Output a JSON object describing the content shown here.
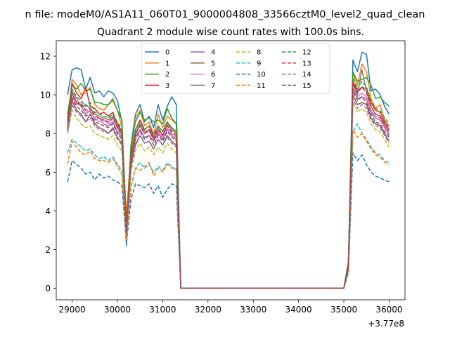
{
  "figure": {
    "suptitle": "n file: modeM0/AS1A11_060T01_9000004808_33566cztM0_level2_quad_clean",
    "title": "Quadrant 2 module wise count rates with 100.0s bins.",
    "offset_label": "+3.77e8"
  },
  "chart_data": {
    "type": "line",
    "title": "Quadrant 2 module wise count rates with 100.0s bins.",
    "xlabel": "",
    "ylabel": "",
    "x_offset": 377000000,
    "xlim": [
      28650,
      36350
    ],
    "ylim": [
      -0.6,
      12.8
    ],
    "xticks": [
      29000,
      30000,
      31000,
      32000,
      33000,
      34000,
      35000,
      36000
    ],
    "yticks": [
      0,
      2,
      4,
      6,
      8,
      10,
      12
    ],
    "grid": false,
    "legend": {
      "placement": "upper center",
      "columns": 4
    },
    "x": [
      28900,
      29000,
      29100,
      29200,
      29300,
      29400,
      29500,
      29600,
      29700,
      29800,
      29900,
      30000,
      30100,
      30200,
      30300,
      30400,
      30500,
      30600,
      30700,
      30800,
      30900,
      31000,
      31100,
      31200,
      31300,
      31400,
      31500,
      35000,
      35100,
      35200,
      35300,
      35400,
      35500,
      35600,
      35700,
      35800,
      35900,
      36000
    ],
    "series": [
      {
        "name": "0",
        "color": "#1f77b4",
        "dash": "solid",
        "values": [
          10.0,
          11.3,
          11.4,
          11.3,
          10.3,
          10.9,
          10.1,
          10.2,
          9.9,
          10.2,
          10.1,
          9.7,
          8.6,
          2.2,
          7.4,
          9.0,
          9.5,
          8.6,
          8.9,
          8.3,
          9.5,
          8.7,
          9.4,
          9.9,
          9.5,
          0.0,
          0.0,
          0.0,
          1.3,
          11.8,
          11.2,
          12.2,
          12.1,
          10.2,
          10.3,
          10.0,
          9.4,
          9.0
        ]
      },
      {
        "name": "1",
        "color": "#ff7f0e",
        "dash": "solid",
        "values": [
          8.3,
          10.8,
          10.5,
          10.0,
          10.1,
          10.4,
          9.5,
          9.3,
          9.2,
          9.5,
          9.7,
          9.2,
          8.3,
          3.7,
          7.2,
          8.8,
          9.2,
          8.4,
          8.6,
          7.9,
          9.0,
          8.3,
          8.9,
          8.7,
          8.5,
          0.0,
          0.0,
          0.0,
          1.2,
          11.1,
          10.5,
          11.6,
          11.2,
          9.8,
          9.3,
          9.5,
          8.7,
          8.2
        ]
      },
      {
        "name": "2",
        "color": "#2ca02c",
        "dash": "solid",
        "values": [
          9.0,
          10.5,
          10.3,
          10.6,
          10.2,
          10.3,
          9.6,
          9.6,
          9.5,
          9.5,
          9.8,
          9.2,
          8.7,
          3.0,
          7.4,
          8.6,
          9.1,
          8.7,
          8.8,
          8.6,
          8.7,
          8.5,
          9.3,
          8.8,
          8.5,
          0.0,
          0.0,
          0.0,
          1.4,
          11.2,
          10.7,
          10.8,
          10.9,
          10.5,
          9.8,
          9.9,
          9.6,
          9.4
        ]
      },
      {
        "name": "3",
        "color": "#d62728",
        "dash": "solid",
        "values": [
          8.6,
          10.6,
          10.1,
          9.8,
          10.4,
          9.4,
          9.3,
          9.0,
          9.1,
          8.9,
          9.1,
          8.5,
          8.1,
          3.3,
          7.0,
          8.2,
          8.7,
          8.2,
          8.4,
          7.8,
          8.4,
          8.1,
          8.6,
          8.3,
          8.1,
          0.0,
          0.0,
          0.0,
          1.2,
          10.7,
          10.2,
          10.4,
          10.3,
          9.6,
          9.2,
          9.1,
          8.6,
          8.4
        ]
      },
      {
        "name": "4",
        "color": "#9467bd",
        "dash": "solid",
        "values": [
          8.2,
          10.1,
          9.6,
          9.4,
          9.0,
          9.2,
          8.7,
          8.8,
          8.5,
          8.4,
          8.6,
          8.1,
          7.8,
          2.9,
          6.6,
          7.8,
          8.2,
          7.8,
          7.9,
          7.6,
          8.0,
          7.7,
          8.2,
          7.9,
          7.7,
          0.0,
          0.0,
          0.0,
          1.1,
          10.3,
          9.8,
          9.9,
          9.8,
          9.1,
          8.8,
          8.7,
          8.3,
          7.9
        ]
      },
      {
        "name": "5",
        "color": "#8c564b",
        "dash": "solid",
        "values": [
          8.0,
          9.7,
          9.2,
          9.0,
          8.6,
          9.0,
          8.5,
          8.3,
          8.2,
          8.0,
          8.3,
          7.8,
          7.5,
          2.7,
          6.3,
          7.4,
          7.9,
          7.5,
          7.6,
          7.2,
          7.7,
          7.4,
          7.9,
          7.6,
          7.4,
          0.0,
          0.0,
          0.0,
          1.0,
          10.0,
          9.5,
          9.6,
          9.5,
          8.8,
          8.5,
          8.4,
          8.0,
          7.6
        ]
      },
      {
        "name": "6",
        "color": "#e377c2",
        "dash": "solid",
        "values": [
          8.4,
          9.9,
          9.5,
          9.6,
          9.2,
          9.1,
          8.8,
          8.6,
          8.7,
          8.5,
          8.8,
          8.3,
          7.9,
          3.0,
          6.8,
          7.9,
          8.4,
          8.0,
          8.1,
          7.7,
          8.1,
          7.8,
          8.3,
          8.0,
          7.8,
          0.0,
          0.0,
          0.0,
          1.1,
          10.4,
          9.9,
          10.1,
          9.9,
          9.2,
          8.9,
          8.8,
          8.4,
          8.0
        ]
      },
      {
        "name": "7",
        "color": "#7f7f7f",
        "dash": "solid",
        "values": [
          8.5,
          10.2,
          9.8,
          9.4,
          9.5,
          9.3,
          9.0,
          8.9,
          8.8,
          8.7,
          8.9,
          8.4,
          8.0,
          3.1,
          6.9,
          8.0,
          8.5,
          8.1,
          8.2,
          7.8,
          8.3,
          7.9,
          8.5,
          8.2,
          8.0,
          0.0,
          0.0,
          0.0,
          1.2,
          10.6,
          10.0,
          11.3,
          10.2,
          9.4,
          9.0,
          8.9,
          8.5,
          8.1
        ]
      },
      {
        "name": "8",
        "color": "#bcbd22",
        "dash": "dashed",
        "values": [
          8.0,
          9.2,
          8.8,
          8.5,
          8.3,
          8.4,
          8.0,
          7.9,
          7.8,
          7.7,
          7.9,
          7.4,
          7.1,
          2.6,
          6.0,
          7.1,
          7.5,
          7.1,
          7.3,
          6.9,
          7.3,
          7.0,
          7.5,
          7.2,
          7.0,
          0.0,
          0.0,
          0.0,
          1.0,
          9.6,
          9.1,
          9.3,
          9.1,
          8.5,
          8.2,
          8.1,
          7.7,
          7.3
        ]
      },
      {
        "name": "9",
        "color": "#17becf",
        "dash": "dashed",
        "values": [
          7.0,
          7.7,
          7.5,
          7.3,
          7.1,
          7.2,
          6.9,
          6.7,
          6.8,
          6.6,
          6.8,
          6.4,
          6.1,
          2.4,
          5.3,
          6.2,
          6.5,
          6.2,
          6.4,
          6.0,
          6.3,
          6.1,
          6.5,
          6.3,
          6.1,
          0.0,
          0.0,
          0.0,
          0.9,
          8.1,
          8.5,
          8.0,
          7.7,
          7.3,
          7.0,
          6.9,
          6.6,
          6.5
        ]
      },
      {
        "name": "10",
        "color": "#1f77b4",
        "dash": "dashed",
        "values": [
          5.5,
          6.6,
          6.4,
          6.2,
          5.9,
          6.0,
          5.6,
          5.9,
          5.7,
          5.8,
          5.6,
          5.5,
          5.3,
          2.3,
          4.6,
          5.4,
          5.3,
          5.2,
          5.4,
          4.9,
          5.3,
          4.7,
          5.1,
          5.4,
          5.3,
          0.0,
          0.0,
          0.0,
          0.8,
          7.0,
          6.6,
          6.9,
          6.4,
          6.0,
          5.8,
          5.7,
          5.6,
          5.5
        ]
      },
      {
        "name": "11",
        "color": "#ff7f0e",
        "dash": "dashed",
        "values": [
          6.4,
          7.6,
          7.3,
          7.0,
          6.9,
          7.1,
          6.7,
          6.6,
          6.6,
          6.5,
          6.7,
          6.3,
          5.9,
          2.5,
          5.2,
          6.2,
          6.1,
          6.3,
          6.5,
          5.8,
          6.2,
          6.0,
          6.4,
          6.2,
          6.2,
          0.0,
          0.0,
          0.0,
          0.9,
          8.2,
          7.8,
          8.0,
          7.6,
          7.2,
          6.9,
          6.8,
          6.5,
          6.4
        ]
      },
      {
        "name": "12",
        "color": "#2ca02c",
        "dash": "dashed",
        "values": [
          8.8,
          10.3,
          9.9,
          9.7,
          9.4,
          9.6,
          9.1,
          9.0,
          8.9,
          8.8,
          9.0,
          8.6,
          8.2,
          3.1,
          7.0,
          8.2,
          8.6,
          8.2,
          8.4,
          8.0,
          8.4,
          8.1,
          8.6,
          8.3,
          8.1,
          0.0,
          0.0,
          0.0,
          1.2,
          10.9,
          10.3,
          10.7,
          10.4,
          9.7,
          9.3,
          9.2,
          8.8,
          8.5
        ]
      },
      {
        "name": "13",
        "color": "#d62728",
        "dash": "dashed",
        "values": [
          8.7,
          10.0,
          9.6,
          9.5,
          9.2,
          9.3,
          8.9,
          8.8,
          8.7,
          8.6,
          8.8,
          8.3,
          7.9,
          3.0,
          6.8,
          8.0,
          8.4,
          8.0,
          8.2,
          7.7,
          8.2,
          7.9,
          8.4,
          8.1,
          7.9,
          0.0,
          0.0,
          0.0,
          1.1,
          10.6,
          10.1,
          10.4,
          10.1,
          9.4,
          9.0,
          8.9,
          8.5,
          8.2
        ]
      },
      {
        "name": "14",
        "color": "#9467bd",
        "dash": "dashed",
        "values": [
          8.1,
          9.5,
          9.1,
          8.9,
          8.6,
          8.8,
          8.4,
          8.2,
          8.1,
          8.0,
          8.2,
          7.7,
          7.4,
          2.8,
          6.4,
          7.5,
          7.9,
          7.5,
          7.6,
          7.2,
          7.7,
          7.4,
          7.8,
          7.5,
          7.3,
          0.0,
          0.0,
          0.0,
          1.0,
          9.8,
          9.3,
          9.5,
          9.3,
          8.7,
          8.4,
          8.3,
          7.9,
          7.5
        ]
      },
      {
        "name": "15",
        "color": "#8c564b",
        "dash": "dashed",
        "values": [
          8.3,
          9.8,
          9.4,
          9.2,
          8.9,
          9.0,
          8.6,
          8.5,
          8.4,
          8.3,
          8.5,
          8.0,
          7.7,
          2.9,
          6.6,
          7.7,
          8.1,
          7.7,
          7.9,
          7.4,
          7.9,
          7.6,
          8.1,
          7.8,
          7.6,
          0.0,
          0.0,
          0.0,
          1.1,
          10.2,
          9.7,
          9.9,
          9.6,
          9.0,
          8.6,
          8.5,
          8.1,
          7.8
        ]
      }
    ]
  }
}
